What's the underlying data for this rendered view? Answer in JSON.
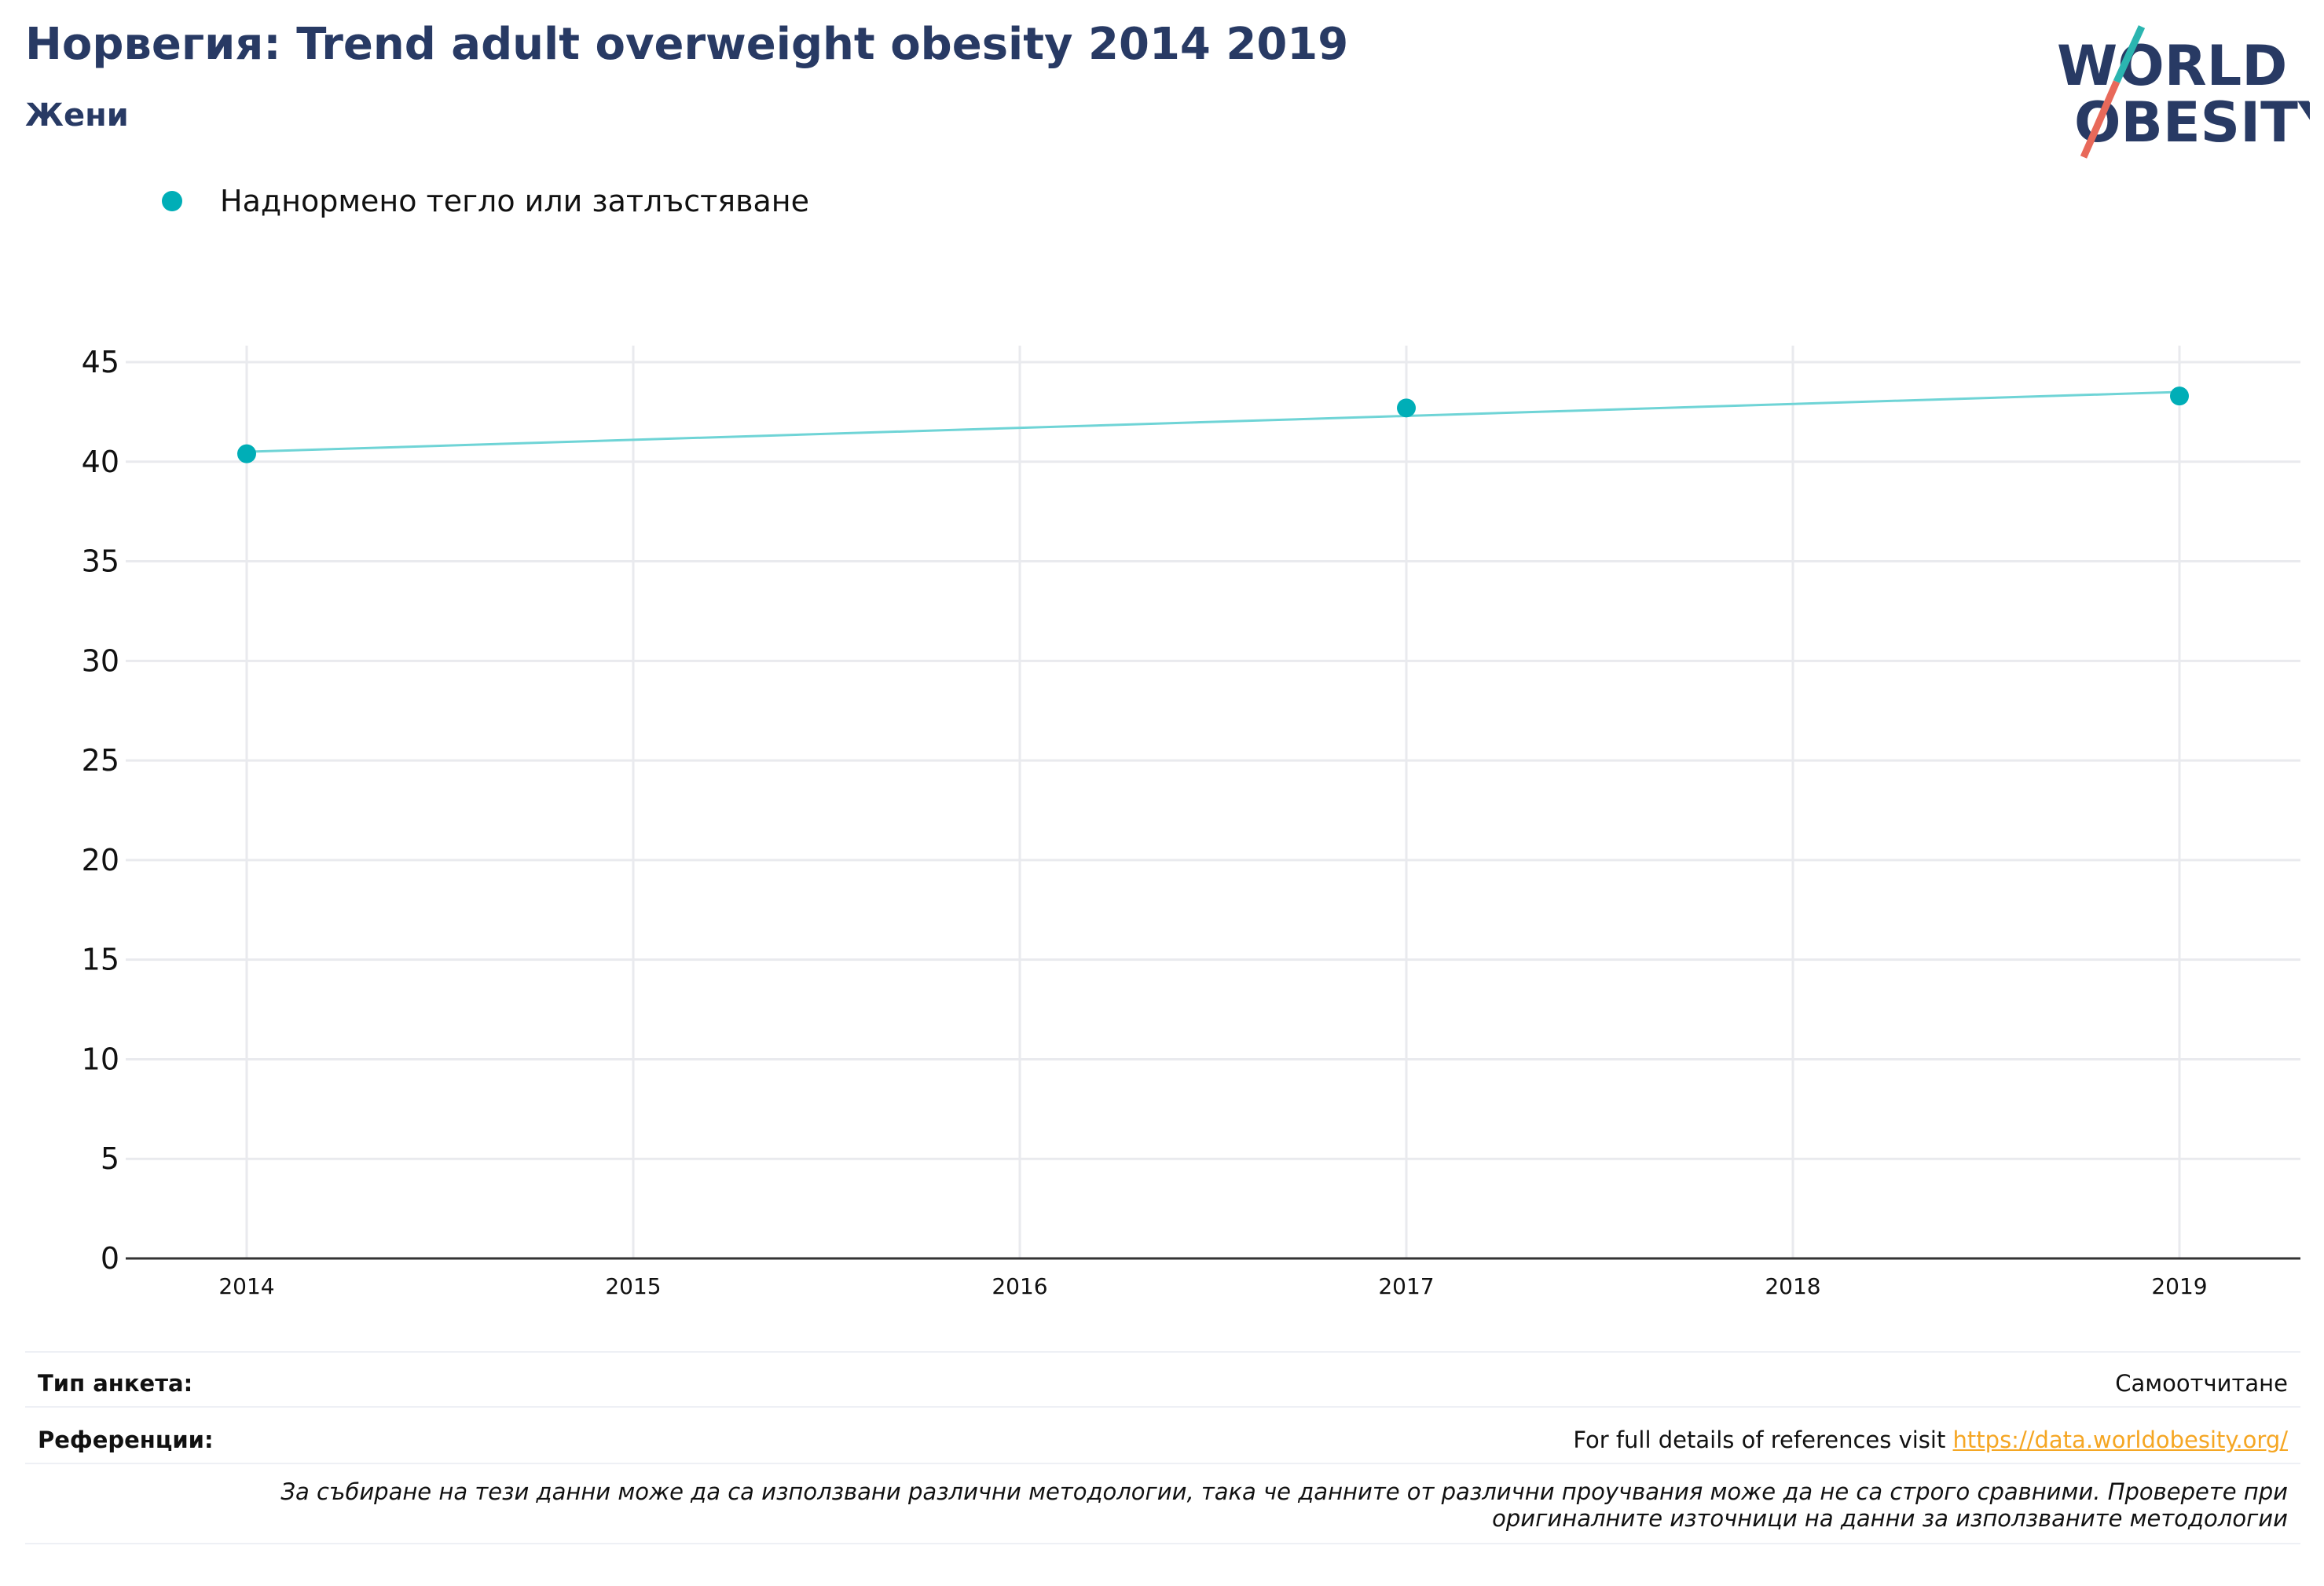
{
  "header": {
    "title": "Норвегия: Trend adult overweight obesity 2014 2019",
    "subtitle": "Жени"
  },
  "logo": {
    "line1": "WORLD",
    "line2": "OBESITY",
    "colors": {
      "text": "#283a64",
      "slash_top": "#2bb5b0",
      "slash_bottom": "#e8695a"
    }
  },
  "colors": {
    "series_marker": "#00aeb7",
    "series_line": "#6fd4d6",
    "grid": "#e9eaee",
    "axis": "#333333"
  },
  "chart_data": {
    "type": "line",
    "title": "Норвегия: Trend adult overweight obesity 2014 2019",
    "subtitle": "Жени",
    "x_ticks": [
      "2014",
      "2015",
      "2016",
      "2017",
      "2018",
      "2019"
    ],
    "y_ticks": [
      "0",
      "5",
      "10",
      "15",
      "20",
      "25",
      "30",
      "35",
      "40",
      "45"
    ],
    "ylim": [
      0,
      45
    ],
    "xlim": [
      2014,
      2019
    ],
    "grid": true,
    "legend_position": "top-left",
    "series": [
      {
        "name": "Наднормено тегло или затлъстяване",
        "points": [
          {
            "x": 2014,
            "y": 40.4
          },
          {
            "x": 2017,
            "y": 42.7
          },
          {
            "x": 2019,
            "y": 43.3
          }
        ],
        "trend": [
          {
            "x": 2014,
            "y": 40.5
          },
          {
            "x": 2019,
            "y": 43.5
          }
        ]
      }
    ]
  },
  "footer": {
    "survey_label": "Тип анкета:",
    "survey_value": "Самоотчитане",
    "refs_label": "Референции:",
    "refs_text": "For full details of references visit",
    "refs_link": "https://data.worldobesity.org/",
    "note": "За събиране на тези данни може да са използвани различни методологии, така че данните от различни проучвания може да не са строго сравними. Проверете при оригиналните източници на данни за използваните методологии"
  }
}
